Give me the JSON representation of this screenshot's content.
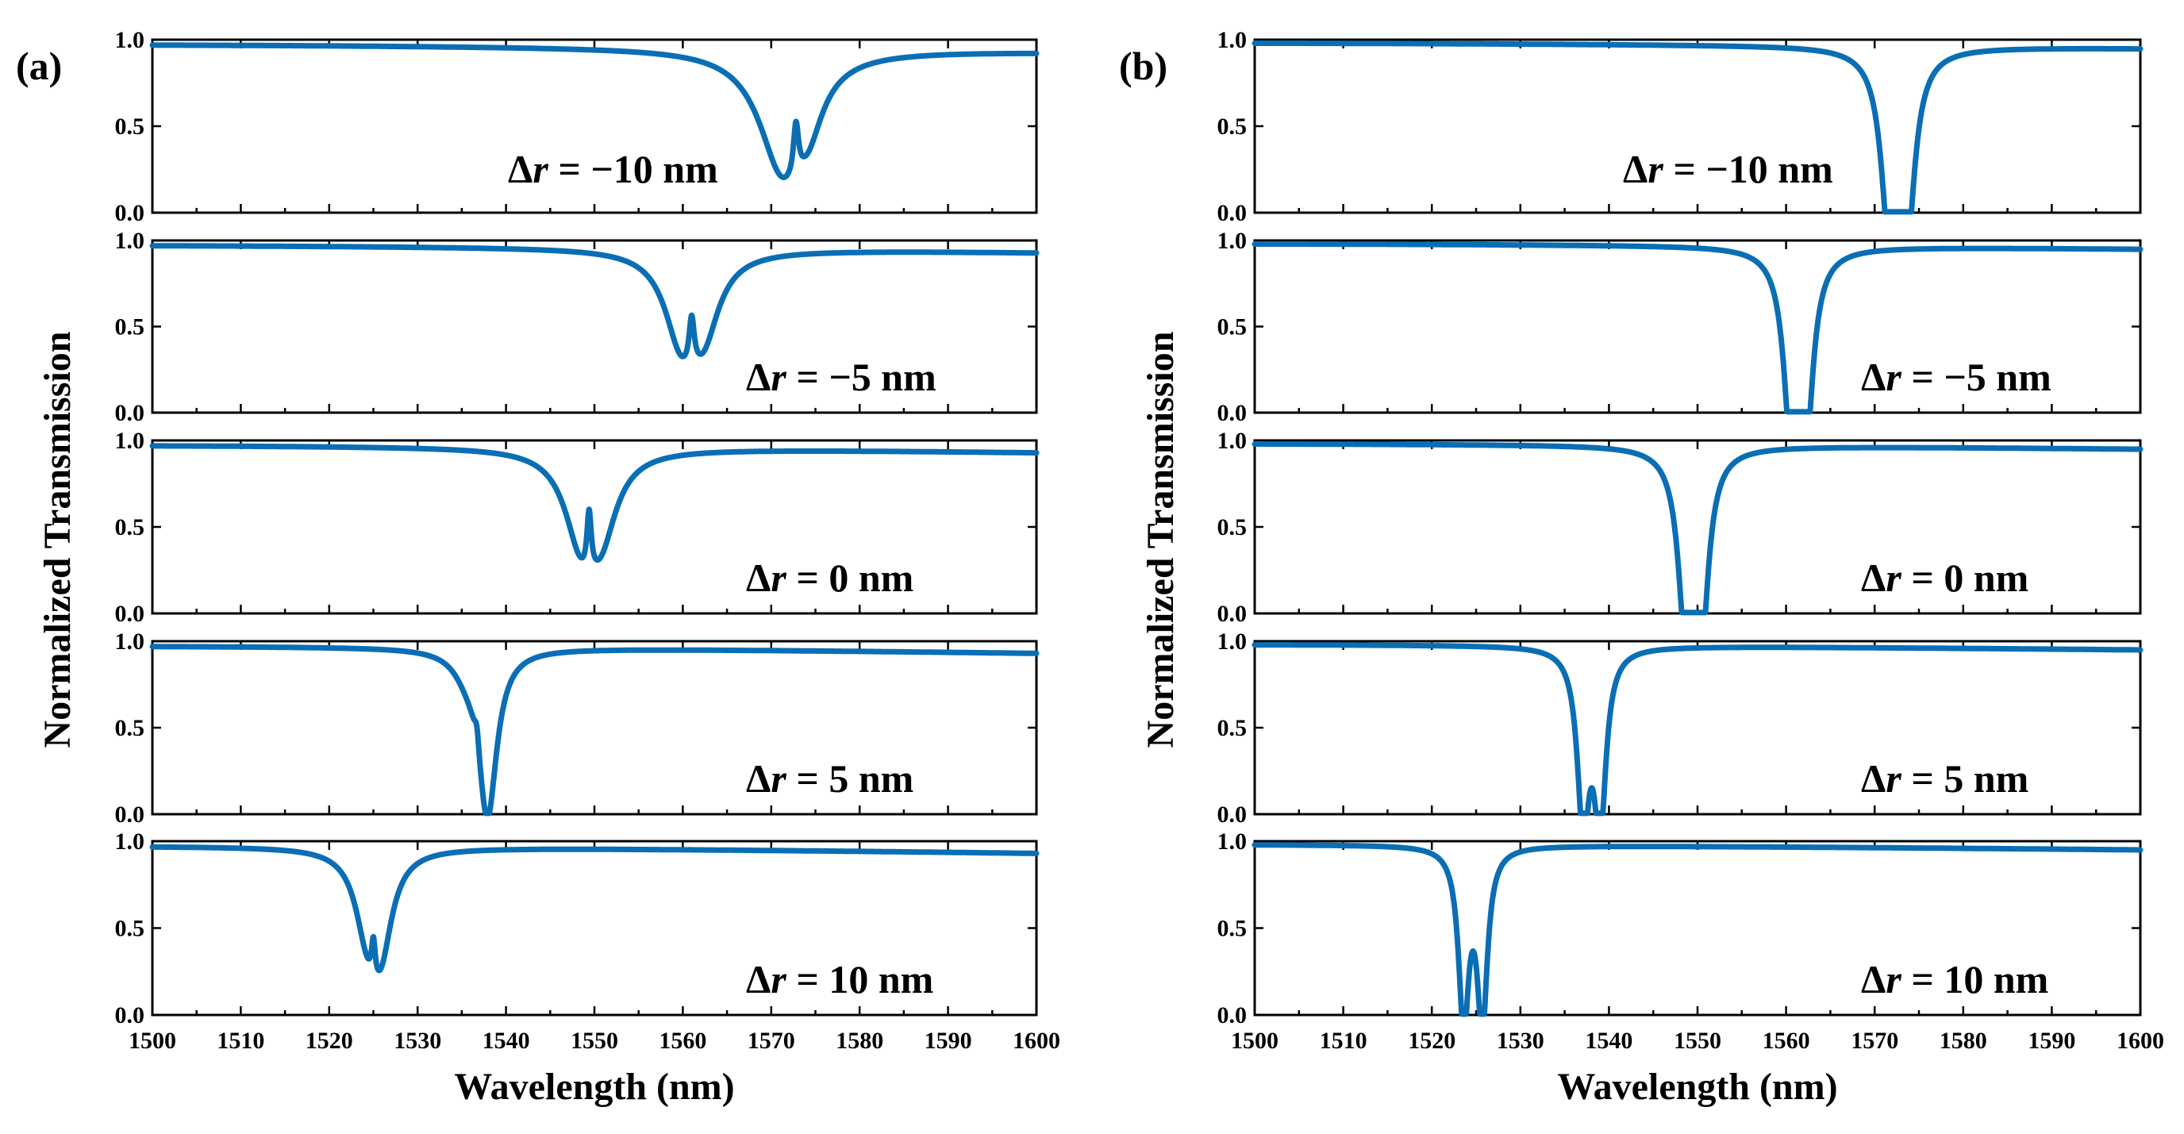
{
  "chart_data": [
    {
      "panel": "(a)",
      "type": "line",
      "xlabel": "Wavelength (nm)",
      "ylabel": "Normalized Transmission",
      "xlim": [
        1500,
        1600
      ],
      "ylim": [
        0,
        1
      ],
      "xticks": [
        1500,
        1510,
        1520,
        1530,
        1540,
        1550,
        1560,
        1570,
        1580,
        1590,
        1600
      ],
      "xtick_labels": [
        "1500",
        "1510",
        "1520",
        "1530",
        "1540",
        "1550",
        "1560",
        "1570",
        "1580",
        "1590",
        "1600"
      ],
      "yticks": [
        0,
        0.5,
        1
      ],
      "ytick_labels": [
        "0.0",
        "0.5",
        "1.0"
      ],
      "color": "#0a6eb4",
      "subplots": [
        {
          "label_symbol": "Δ",
          "label_var": "r",
          "label_rest": " = −10 nm",
          "label_pos": "mid",
          "baseline": {
            "start": 0.97,
            "end": 0.93
          },
          "dips": [
            {
              "x0": 1571.3,
              "w": 3.2,
              "d": 0.68
            },
            {
              "x0": 1574.2,
              "w": 2.0,
              "d": 0.24
            }
          ],
          "peak": {
            "x0": 1572.8,
            "w": 0.35,
            "h": 0.3
          }
        },
        {
          "label_symbol": "Δ",
          "label_var": "r",
          "label_rest": " = −5 nm",
          "label_pos": "low",
          "baseline": {
            "start": 0.97,
            "end": 0.93
          },
          "dips": [
            {
              "x0": 1559.8,
              "w": 2.2,
              "d": 0.46
            },
            {
              "x0": 1562.3,
              "w": 2.2,
              "d": 0.42
            }
          ],
          "peak": {
            "x0": 1561.0,
            "w": 0.35,
            "h": 0.28
          }
        },
        {
          "label_symbol": "Δ",
          "label_var": "r",
          "label_rest": " = 0 nm",
          "label_pos": "low",
          "baseline": {
            "start": 0.97,
            "end": 0.93
          },
          "dips": [
            {
              "x0": 1548.5,
              "w": 2.2,
              "d": 0.46
            },
            {
              "x0": 1550.7,
              "w": 2.2,
              "d": 0.42
            }
          ],
          "peak": {
            "x0": 1549.4,
            "w": 0.3,
            "h": 0.35
          }
        },
        {
          "label_symbol": "Δ",
          "label_var": "r",
          "label_rest": " = 5 nm",
          "label_pos": "low",
          "baseline": {
            "start": 0.97,
            "end": 0.93
          },
          "dips": [
            {
              "x0": 1537.9,
              "w": 1.3,
              "d": 0.96
            },
            {
              "x0": 1535.5,
              "w": 1.8,
              "d": 0.08
            }
          ],
          "peak": {
            "x0": 1536.7,
            "w": 0.3,
            "h": 0.12
          }
        },
        {
          "label_symbol": "Δ",
          "label_var": "r",
          "label_rest": " = 10 nm",
          "label_pos": "low",
          "baseline": {
            "start": 0.97,
            "end": 0.93
          },
          "dips": [
            {
              "x0": 1524.3,
              "w": 1.6,
              "d": 0.38
            },
            {
              "x0": 1525.8,
              "w": 1.6,
              "d": 0.52
            }
          ],
          "peak": {
            "x0": 1525.0,
            "w": 0.25,
            "h": 0.22
          }
        }
      ]
    },
    {
      "panel": "(b)",
      "type": "line",
      "xlabel": "Wavelength (nm)",
      "ylabel": "Normalized Transmission",
      "xlim": [
        1500,
        1600
      ],
      "ylim": [
        0,
        1
      ],
      "xticks": [
        1500,
        1510,
        1520,
        1530,
        1540,
        1550,
        1560,
        1570,
        1580,
        1590,
        1600
      ],
      "xtick_labels": [
        "1500",
        "1510",
        "1520",
        "1530",
        "1540",
        "1550",
        "1560",
        "1570",
        "1580",
        "1590",
        "1600"
      ],
      "yticks": [
        0,
        0.5,
        1
      ],
      "ytick_labels": [
        "0.0",
        "0.5",
        "1.0"
      ],
      "color": "#0a6eb4",
      "subplots": [
        {
          "label_symbol": "Δ",
          "label_var": "r",
          "label_rest": " = −10 nm",
          "label_pos": "mid",
          "baseline": {
            "start": 0.98,
            "end": 0.95
          },
          "dips": [
            {
              "x0": 1571.7,
              "w": 1.1,
              "d": 0.99
            },
            {
              "x0": 1573.6,
              "w": 1.1,
              "d": 0.99
            }
          ],
          "peak": null
        },
        {
          "label_symbol": "Δ",
          "label_var": "r",
          "label_rest": " = −5 nm",
          "label_pos": "low",
          "baseline": {
            "start": 0.98,
            "end": 0.95
          },
          "dips": [
            {
              "x0": 1560.6,
              "w": 1.0,
              "d": 0.99
            },
            {
              "x0": 1562.2,
              "w": 1.0,
              "d": 0.99
            }
          ],
          "peak": null
        },
        {
          "label_symbol": "Δ",
          "label_var": "r",
          "label_rest": " = 0 nm",
          "label_pos": "low",
          "baseline": {
            "start": 0.98,
            "end": 0.95
          },
          "dips": [
            {
              "x0": 1548.7,
              "w": 1.0,
              "d": 0.99
            },
            {
              "x0": 1550.4,
              "w": 1.0,
              "d": 0.99
            }
          ],
          "peak": null
        },
        {
          "label_symbol": "Δ",
          "label_var": "r",
          "label_rest": " = 5 nm",
          "label_pos": "low",
          "baseline": {
            "start": 0.98,
            "end": 0.95
          },
          "dips": [
            {
              "x0": 1537.1,
              "w": 0.8,
              "d": 0.99
            },
            {
              "x0": 1539.0,
              "w": 0.8,
              "d": 0.99
            }
          ],
          "peak": null
        },
        {
          "label_symbol": "Δ",
          "label_var": "r",
          "label_rest": " = 10 nm",
          "label_pos": "low",
          "baseline": {
            "start": 0.98,
            "end": 0.95
          },
          "dips": [
            {
              "x0": 1523.6,
              "w": 0.7,
              "d": 0.99
            },
            {
              "x0": 1525.7,
              "w": 0.7,
              "d": 0.99
            }
          ],
          "peak": null
        }
      ]
    }
  ]
}
